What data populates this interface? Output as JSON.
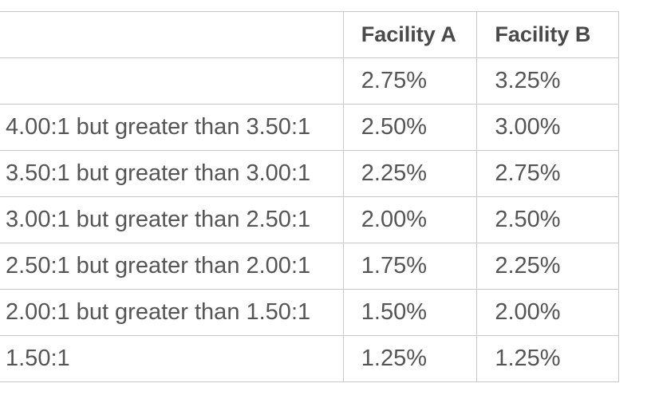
{
  "table": {
    "headers": [
      "",
      "Facility A",
      "Facility B"
    ],
    "rows": [
      {
        "ratio": "",
        "facility_a": "2.75%",
        "facility_b": "3.25%"
      },
      {
        "ratio": "4.00:1 but greater than 3.50:1",
        "facility_a": "2.50%",
        "facility_b": "3.00%"
      },
      {
        "ratio": "3.50:1 but greater than 3.00:1",
        "facility_a": "2.25%",
        "facility_b": "2.75%"
      },
      {
        "ratio": "3.00:1 but greater than 2.50:1",
        "facility_a": "2.00%",
        "facility_b": "2.50%"
      },
      {
        "ratio": "2.50:1 but greater than 2.00:1",
        "facility_a": "1.75%",
        "facility_b": "2.25%"
      },
      {
        "ratio": "2.00:1 but greater than 1.50:1",
        "facility_a": "1.50%",
        "facility_b": "2.00%"
      },
      {
        "ratio": "1.50:1",
        "facility_a": "1.25%",
        "facility_b": "1.25%"
      }
    ]
  }
}
